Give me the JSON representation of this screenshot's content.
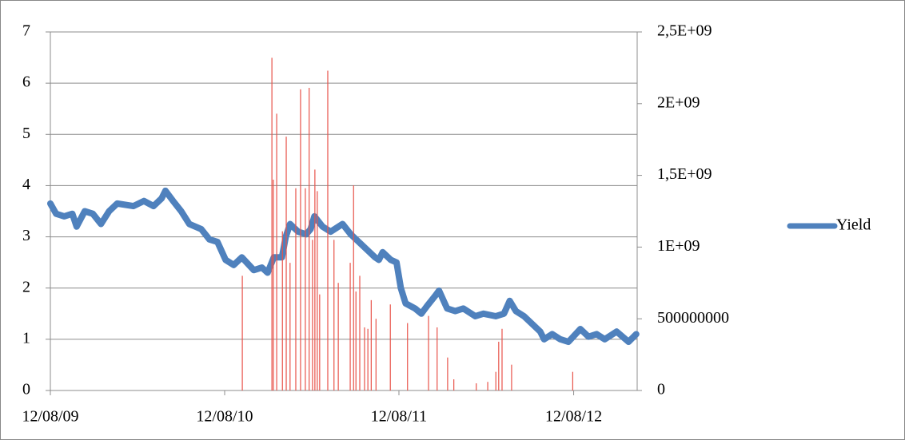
{
  "chart_data": {
    "type": "line",
    "xlim": [
      "2009-08-12",
      "2012-12-23"
    ],
    "xticks": [
      {
        "value": "2009-08-12",
        "label": "12/08/09"
      },
      {
        "value": "2010-08-12",
        "label": "12/08/10"
      },
      {
        "value": "2011-08-12",
        "label": "12/08/11"
      },
      {
        "value": "2012-08-12",
        "label": "12/08/12"
      }
    ],
    "ylim": [
      0,
      7
    ],
    "yticks": [
      0,
      1,
      2,
      3,
      4,
      5,
      6,
      7
    ],
    "y2lim": [
      0,
      2500000000
    ],
    "y2ticks": [
      0,
      500000000,
      {
        "value": 1000000000,
        "label": "1E+09"
      },
      {
        "value": 1500000000,
        "label": "1,5E+09"
      },
      {
        "value": 2000000000,
        "label": "2E+09"
      },
      {
        "value": 2500000000,
        "label": "2,5E+09"
      }
    ],
    "grid": true,
    "legend": "right",
    "series": [
      {
        "name": "Yield",
        "color": "#4f81bd",
        "x": [
          "2009-08-12",
          "2009-08-24",
          "2009-09-10",
          "2009-09-27",
          "2009-10-06",
          "2009-10-23",
          "2009-11-09",
          "2009-11-26",
          "2009-12-13",
          "2009-12-30",
          "2010-02-02",
          "2010-02-24",
          "2010-03-16",
          "2010-04-02",
          "2010-04-10",
          "2010-04-26",
          "2010-05-13",
          "2010-05-30",
          "2010-06-24",
          "2010-07-11",
          "2010-07-28",
          "2010-08-14",
          "2010-08-31",
          "2010-09-17",
          "2010-10-12",
          "2010-10-29",
          "2010-11-10",
          "2010-11-23",
          "2010-12-10",
          "2010-12-18",
          "2010-12-27",
          "2011-01-13",
          "2011-01-30",
          "2011-02-08",
          "2011-02-16",
          "2011-03-05",
          "2011-03-22",
          "2011-04-16",
          "2011-05-03",
          "2011-05-20",
          "2011-06-06",
          "2011-06-23",
          "2011-07-01",
          "2011-07-09",
          "2011-07-26",
          "2011-08-07",
          "2011-08-16",
          "2011-08-26",
          "2011-09-15",
          "2011-09-28",
          "2011-10-10",
          "2011-10-27",
          "2011-11-04",
          "2011-11-21",
          "2011-12-08",
          "2011-12-25",
          "2012-01-19",
          "2012-02-05",
          "2012-03-02",
          "2012-03-19",
          "2012-03-31",
          "2012-04-13",
          "2012-04-30",
          "2012-05-17",
          "2012-06-03",
          "2012-06-11",
          "2012-06-28",
          "2012-07-15",
          "2012-08-01",
          "2012-08-26",
          "2012-09-12",
          "2012-09-29",
          "2012-10-16",
          "2012-11-10",
          "2012-12-05",
          "2012-12-21"
        ],
        "values": [
          3.65,
          3.45,
          3.4,
          3.45,
          3.2,
          3.5,
          3.45,
          3.25,
          3.5,
          3.65,
          3.6,
          3.7,
          3.6,
          3.75,
          3.9,
          3.7,
          3.5,
          3.25,
          3.15,
          2.95,
          2.9,
          2.55,
          2.45,
          2.6,
          2.35,
          2.4,
          2.3,
          2.6,
          2.6,
          3.0,
          3.25,
          3.1,
          3.05,
          3.15,
          3.4,
          3.2,
          3.1,
          3.25,
          3.05,
          2.9,
          2.75,
          2.6,
          2.55,
          2.7,
          2.55,
          2.5,
          2.0,
          1.7,
          1.6,
          1.5,
          1.65,
          1.85,
          1.95,
          1.6,
          1.55,
          1.6,
          1.45,
          1.5,
          1.45,
          1.5,
          1.75,
          1.55,
          1.45,
          1.3,
          1.15,
          1.0,
          1.1,
          1.0,
          0.95,
          1.2,
          1.05,
          1.1,
          1.0,
          1.15,
          0.95,
          1.1
        ]
      },
      {
        "color": "#e8534a",
        "type": "bar",
        "axis": "y2",
        "x": [
          "2010-09-18",
          "2010-11-19",
          "2010-11-22",
          "2010-11-29",
          "2010-12-11",
          "2010-12-19",
          "2010-12-27",
          "2011-01-08",
          "2011-01-18",
          "2011-01-28",
          "2011-02-05",
          "2011-02-12",
          "2011-02-17",
          "2011-02-22",
          "2011-02-27",
          "2011-03-16",
          "2011-03-29",
          "2011-04-07",
          "2011-05-02",
          "2011-05-09",
          "2011-05-14",
          "2011-05-22",
          "2011-06-01",
          "2011-06-08",
          "2011-06-15",
          "2011-06-25",
          "2011-07-25",
          "2011-08-30",
          "2011-10-13",
          "2011-10-31",
          "2011-11-22",
          "2011-12-05",
          "2012-01-21",
          "2012-02-14",
          "2012-03-02",
          "2012-03-08",
          "2012-03-15",
          "2012-04-04",
          "2012-08-10"
        ],
        "values": [
          800000000,
          2320000000,
          1470000000,
          1930000000,
          1110000000,
          1770000000,
          890000000,
          1410000000,
          2100000000,
          1410000000,
          2110000000,
          1050000000,
          1540000000,
          1390000000,
          670000000,
          2230000000,
          1050000000,
          750000000,
          890000000,
          1430000000,
          690000000,
          800000000,
          440000000,
          430000000,
          630000000,
          500000000,
          600000000,
          470000000,
          520000000,
          440000000,
          230000000,
          78000000,
          50000000,
          60000000,
          130000000,
          340000000,
          430000000,
          180000000,
          130000000
        ]
      }
    ]
  }
}
